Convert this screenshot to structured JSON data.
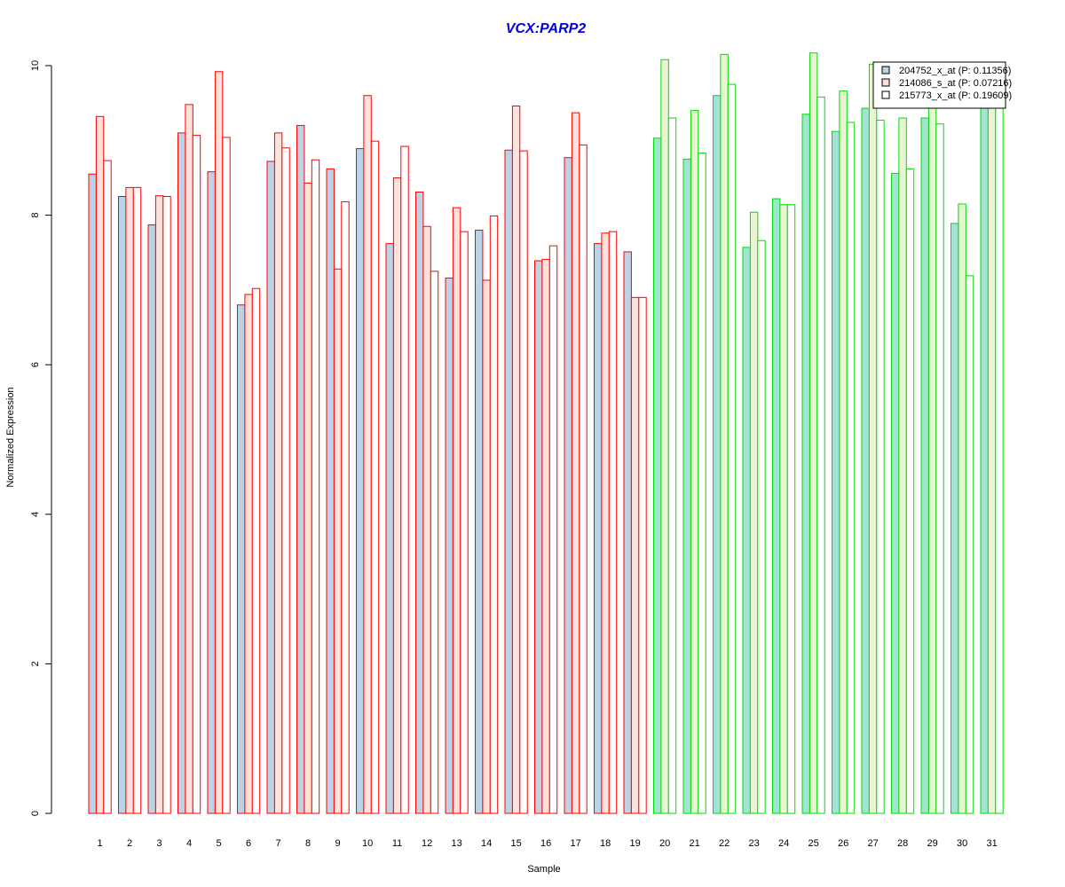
{
  "chart_data": {
    "type": "bar",
    "title": "VCX:PARP2",
    "xlabel": "Sample",
    "ylabel": "Normalized Expression",
    "ylim": [
      0,
      10
    ],
    "yticks": [
      0,
      2,
      4,
      6,
      8,
      10
    ],
    "grid": false,
    "legend_position": "top-right",
    "categories": [
      "1",
      "2",
      "3",
      "4",
      "5",
      "6",
      "7",
      "8",
      "9",
      "10",
      "11",
      "12",
      "13",
      "14",
      "15",
      "16",
      "17",
      "18",
      "19",
      "20",
      "21",
      "22",
      "23",
      "24",
      "25",
      "26",
      "27",
      "28",
      "29",
      "30",
      "31"
    ],
    "group_colors": {
      "samples_1_19": "#ff0000",
      "samples_20_31": "#00dd00"
    },
    "series": [
      {
        "name": "204752_x_at (P: 0.11356)",
        "fill_red_group": "#bcd3e6",
        "fill_green_group": "#a2e3d5",
        "values": [
          8.55,
          8.25,
          7.87,
          9.1,
          8.58,
          6.8,
          8.72,
          9.2,
          8.62,
          8.89,
          7.62,
          8.31,
          7.16,
          7.8,
          8.87,
          7.39,
          8.77,
          7.62,
          7.51,
          9.03,
          8.75,
          9.6,
          7.57,
          8.22,
          9.35,
          9.12,
          9.43,
          8.56,
          9.3,
          7.89,
          9.55
        ]
      },
      {
        "name": "214086_s_at (P: 0.07216)",
        "fill_red_group": "#fde1da",
        "fill_green_group": "#eaf4d3",
        "values": [
          9.32,
          8.37,
          8.26,
          9.48,
          9.92,
          6.94,
          9.1,
          8.43,
          7.28,
          9.6,
          8.5,
          7.85,
          8.1,
          7.13,
          9.46,
          7.41,
          9.37,
          7.76,
          6.9,
          10.08,
          9.4,
          10.15,
          8.04,
          8.14,
          10.17,
          9.66,
          10.02,
          9.3,
          9.55,
          8.15,
          9.9
        ]
      },
      {
        "name": "215773_x_at (P: 0.19609)",
        "fill_red_group": "#ffffff",
        "fill_green_group": "#ffffff",
        "values": [
          8.73,
          8.37,
          8.25,
          9.07,
          9.04,
          7.02,
          8.9,
          8.74,
          8.18,
          8.99,
          8.92,
          7.25,
          7.78,
          7.99,
          8.86,
          7.59,
          8.94,
          7.78,
          6.9,
          9.3,
          8.83,
          9.75,
          7.66,
          8.14,
          9.58,
          9.24,
          9.27,
          8.62,
          9.22,
          7.19,
          9.5
        ]
      }
    ],
    "legend_swatches": [
      "#bcd3e6",
      "#fde1da",
      "#ffffff"
    ],
    "colors": {
      "title": "#0000dd",
      "axis": "#000000"
    }
  }
}
